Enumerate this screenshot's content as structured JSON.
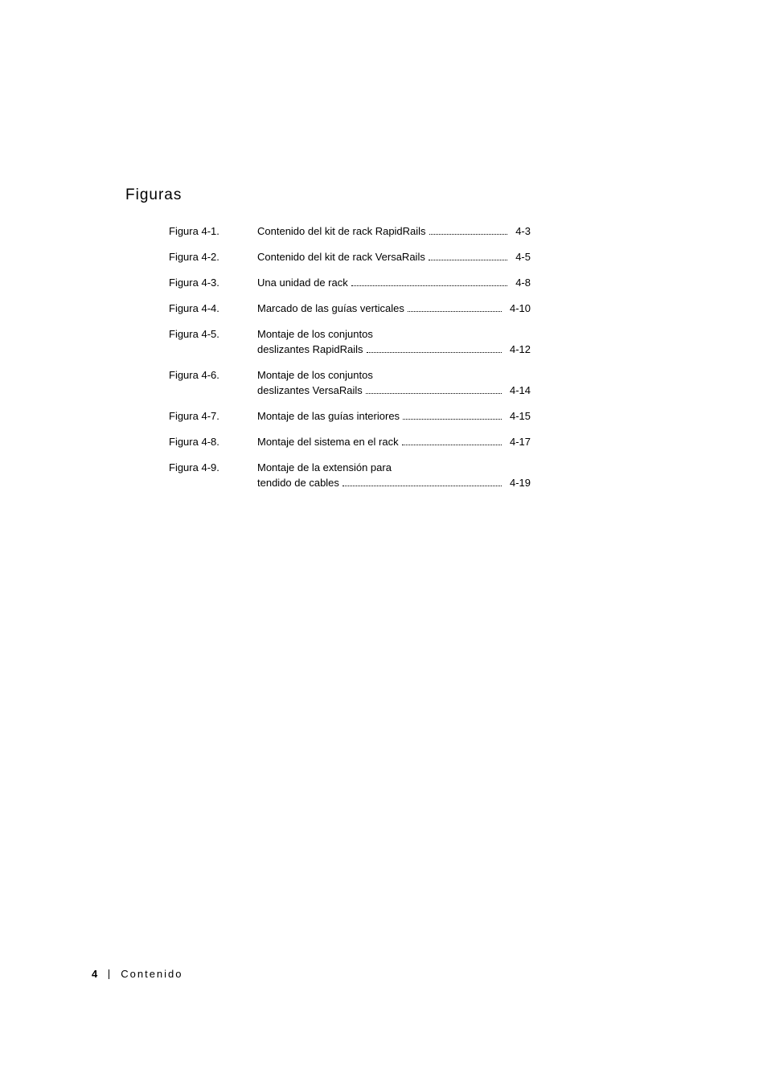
{
  "heading": "Figuras",
  "figures": [
    {
      "label": "Figura 4-1.",
      "lines": [
        "Contenido del kit de rack RapidRails"
      ],
      "page": "4-3"
    },
    {
      "label": "Figura 4-2.",
      "lines": [
        "Contenido del kit de rack VersaRails"
      ],
      "page": "4-5"
    },
    {
      "label": "Figura 4-3.",
      "lines": [
        "Una unidad de rack"
      ],
      "page": "4-8"
    },
    {
      "label": "Figura 4-4.",
      "lines": [
        "Marcado de las guías verticales"
      ],
      "page": "4-10"
    },
    {
      "label": "Figura 4-5.",
      "lines": [
        "Montaje de los conjuntos",
        "deslizantes RapidRails"
      ],
      "page": "4-12"
    },
    {
      "label": "Figura 4-6.",
      "lines": [
        "Montaje de los conjuntos",
        "deslizantes VersaRails"
      ],
      "page": "4-14"
    },
    {
      "label": "Figura 4-7.",
      "lines": [
        "Montaje de las guías interiores"
      ],
      "page": "4-15"
    },
    {
      "label": "Figura 4-8.",
      "lines": [
        "Montaje del sistema en el rack"
      ],
      "page": "4-17"
    },
    {
      "label": "Figura 4-9.",
      "lines": [
        "Montaje de la extensión para",
        "tendido de cables"
      ],
      "page": "4-19"
    }
  ],
  "footer": {
    "page_number": "4",
    "section": "Contenido"
  }
}
